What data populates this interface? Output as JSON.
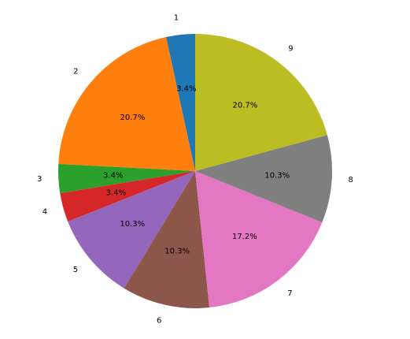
{
  "chart_data": {
    "type": "pie",
    "categories": [
      "1",
      "2",
      "3",
      "4",
      "5",
      "6",
      "7",
      "8",
      "9"
    ],
    "values": [
      3.4,
      20.7,
      3.4,
      3.4,
      10.3,
      10.3,
      17.2,
      10.3,
      20.7
    ],
    "value_labels": [
      "3.4%",
      "20.7%",
      "3.4%",
      "3.4%",
      "10.3%",
      "10.3%",
      "17.2%",
      "10.3%",
      "20.7%"
    ],
    "colors": [
      "#1f77b4",
      "#ff7f0e",
      "#2ca02c",
      "#d62728",
      "#9467bd",
      "#8c564b",
      "#e377c2",
      "#7f7f7f",
      "#bcbd22"
    ],
    "start_angle_deg": 90,
    "direction": "counterclockwise",
    "title": "",
    "legend": "none"
  }
}
